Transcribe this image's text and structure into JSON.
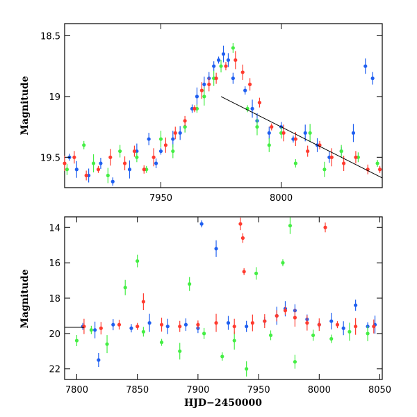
{
  "colors": {
    "blue": "#1f5ff0",
    "green": "#44ee44",
    "red": "#ff3b2f",
    "fit": "#000000"
  },
  "chart_data": [
    {
      "type": "scatter",
      "title": "",
      "xlabel": "",
      "ylabel": "Magnitude",
      "xlim": [
        7910,
        8042
      ],
      "ylim": [
        19.75,
        18.4
      ],
      "y_inverted": true,
      "xticks": [
        7950,
        8000
      ],
      "yticks": [
        18.5,
        19,
        19.5
      ],
      "ytick_labels": [
        "18.5",
        "19",
        "19.5"
      ],
      "series": [
        {
          "color": "blue",
          "x": [
            7912,
            7915,
            7920,
            7925,
            7930,
            7937,
            7940,
            7945,
            7948,
            7950,
            7955,
            7958,
            7960,
            7963,
            7965,
            7968,
            7970,
            7972,
            7974,
            7976,
            7978,
            7980,
            7985,
            7988,
            7990,
            7995,
            8000,
            8005,
            8010,
            8015,
            8020,
            8025,
            8030,
            8035,
            8038
          ],
          "y": [
            19.5,
            19.6,
            19.65,
            19.55,
            19.7,
            19.6,
            19.45,
            19.35,
            19.55,
            19.45,
            19.35,
            19.3,
            19.25,
            19.1,
            19.0,
            18.9,
            18.85,
            18.75,
            18.7,
            18.65,
            18.7,
            18.85,
            18.95,
            19.1,
            19.2,
            19.3,
            19.25,
            19.35,
            19.3,
            19.4,
            19.5,
            19.45,
            19.3,
            18.75,
            18.85
          ]
        },
        {
          "color": "green",
          "x": [
            7911,
            7918,
            7922,
            7928,
            7933,
            7940,
            7944,
            7950,
            7955,
            7960,
            7965,
            7968,
            7972,
            7975,
            7980,
            7986,
            7990,
            7995,
            8000,
            8006,
            8012,
            8018,
            8025,
            8032,
            8040
          ],
          "y": [
            19.6,
            19.4,
            19.55,
            19.65,
            19.45,
            19.5,
            19.6,
            19.35,
            19.45,
            19.25,
            19.1,
            19.0,
            18.85,
            18.75,
            18.6,
            19.1,
            19.25,
            19.4,
            19.3,
            19.55,
            19.3,
            19.6,
            19.45,
            19.5,
            19.55
          ]
        },
        {
          "color": "red",
          "x": [
            7910,
            7914,
            7919,
            7924,
            7929,
            7935,
            7939,
            7943,
            7947,
            7952,
            7956,
            7960,
            7964,
            7967,
            7970,
            7973,
            7977,
            7981,
            7984,
            7987,
            7991,
            7996,
            8001,
            8006,
            8011,
            8016,
            8021,
            8026,
            8031,
            8036,
            8041
          ],
          "y": [
            19.55,
            19.5,
            19.65,
            19.6,
            19.5,
            19.55,
            19.45,
            19.6,
            19.5,
            19.4,
            19.3,
            19.2,
            19.1,
            18.95,
            18.9,
            18.85,
            18.75,
            18.7,
            18.8,
            18.9,
            19.05,
            19.25,
            19.3,
            19.35,
            19.45,
            19.4,
            19.5,
            19.55,
            19.5,
            19.6,
            19.6
          ]
        }
      ],
      "fit_line": {
        "x": [
          7975,
          8042
        ],
        "y": [
          19.0,
          19.67
        ]
      }
    },
    {
      "type": "scatter",
      "title": "",
      "xlabel": "HJD−2450000",
      "ylabel": "Magnitude",
      "xlim": [
        7790,
        8052
      ],
      "ylim": [
        22.6,
        13.4
      ],
      "y_inverted": true,
      "xticks": [
        7800,
        7850,
        7900,
        7950,
        8000,
        8050
      ],
      "yticks": [
        14,
        16,
        18,
        20,
        22
      ],
      "series": [
        {
          "color": "blue",
          "x": [
            7805,
            7815,
            7818,
            7830,
            7845,
            7860,
            7875,
            7890,
            7900,
            7903,
            7915,
            7925,
            7940,
            7955,
            7965,
            7972,
            7980,
            7990,
            8000,
            8010,
            8020,
            8030,
            8040,
            8046
          ],
          "y": [
            19.6,
            19.8,
            21.5,
            19.5,
            19.7,
            19.4,
            19.6,
            19.5,
            19.7,
            13.8,
            15.2,
            19.4,
            19.6,
            19.3,
            19.0,
            18.6,
            18.7,
            19.2,
            19.5,
            19.3,
            19.7,
            18.4,
            19.6,
            19.5
          ]
        },
        {
          "color": "green",
          "x": [
            7800,
            7812,
            7825,
            7840,
            7850,
            7855,
            7870,
            7885,
            7893,
            7905,
            7920,
            7930,
            7940,
            7948,
            7960,
            7970,
            7976,
            7980,
            7995,
            8010,
            8025,
            8040
          ],
          "y": [
            20.4,
            19.8,
            20.6,
            17.4,
            15.9,
            19.9,
            20.5,
            21.0,
            17.2,
            20.0,
            21.3,
            20.4,
            22.0,
            16.6,
            20.1,
            16.0,
            13.9,
            21.6,
            20.1,
            20.3,
            19.9,
            20.0
          ]
        },
        {
          "color": "red",
          "x": [
            7806,
            7820,
            7835,
            7850,
            7855,
            7870,
            7885,
            7900,
            7915,
            7930,
            7935,
            7937,
            7938,
            7945,
            7955,
            7965,
            7972,
            7980,
            7990,
            8000,
            8005,
            8015,
            8030,
            8045
          ],
          "y": [
            19.6,
            19.7,
            19.5,
            19.6,
            18.2,
            19.5,
            19.6,
            19.5,
            19.4,
            19.6,
            13.8,
            14.6,
            16.5,
            19.4,
            19.3,
            19.0,
            18.7,
            19.1,
            19.4,
            19.5,
            14.0,
            19.5,
            19.6,
            19.6
          ]
        }
      ],
      "fit_line": {
        "x": [
          7790,
          7806
        ],
        "y": [
          19.65,
          19.65
        ]
      }
    }
  ]
}
